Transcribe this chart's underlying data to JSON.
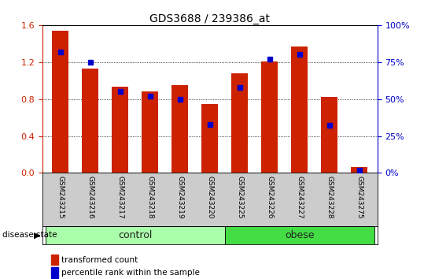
{
  "title": "GDS3688 / 239386_at",
  "samples": [
    "GSM243215",
    "GSM243216",
    "GSM243217",
    "GSM243218",
    "GSM243219",
    "GSM243220",
    "GSM243225",
    "GSM243226",
    "GSM243227",
    "GSM243228",
    "GSM243275"
  ],
  "transformed_count": [
    1.54,
    1.13,
    0.93,
    0.88,
    0.95,
    0.75,
    1.08,
    1.21,
    1.37,
    0.82,
    0.06
  ],
  "percentile_rank": [
    82,
    75,
    55,
    52,
    50,
    33,
    58,
    77,
    80,
    32,
    2
  ],
  "groups": [
    {
      "label": "control",
      "start": 0,
      "end": 5,
      "color": "#aaffaa"
    },
    {
      "label": "obese",
      "start": 6,
      "end": 10,
      "color": "#44dd44"
    }
  ],
  "ylim_left": [
    0,
    1.6
  ],
  "ylim_right": [
    0,
    100
  ],
  "yticks_left": [
    0,
    0.4,
    0.8,
    1.2,
    1.6
  ],
  "yticks_right": [
    0,
    25,
    50,
    75,
    100
  ],
  "bar_color": "#cc2200",
  "dot_color": "#0000cc",
  "sample_bg_color": "#cccccc",
  "group_label_color": "#222222",
  "disease_state_label": "disease state",
  "legend_items": [
    "transformed count",
    "percentile rank within the sample"
  ],
  "left_axis_color": "#cc2200",
  "right_axis_color": "#0000cc",
  "bar_width": 0.55
}
